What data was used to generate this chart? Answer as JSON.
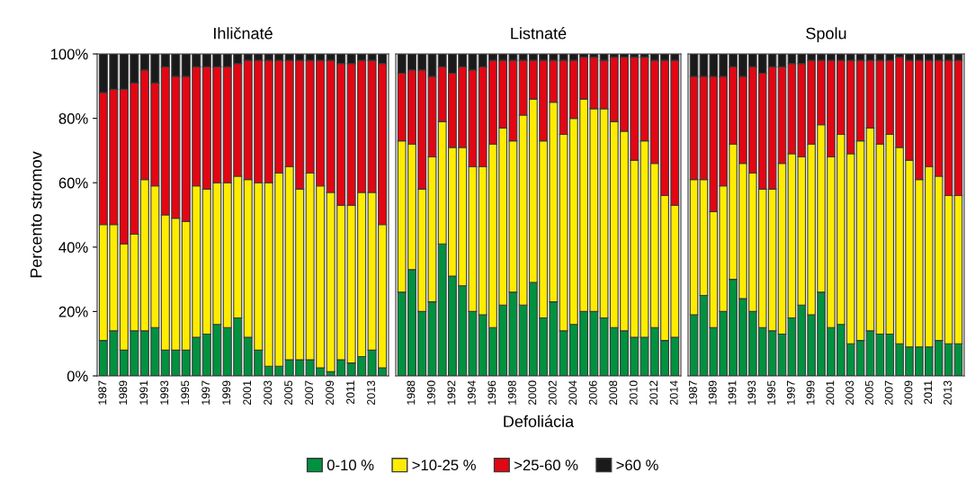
{
  "chart_data": [
    {
      "type": "bar",
      "stacked": true,
      "title": "Ihličnaté",
      "ylabel": "Percento stromov",
      "legend": "bottom",
      "tick_labels": "xy",
      "categories": [
        "1987",
        null,
        "1989",
        null,
        "1991",
        null,
        "1993",
        null,
        "1995",
        null,
        "1997",
        null,
        "1999",
        null,
        "2001",
        null,
        "2003",
        null,
        "2005",
        null,
        "2007",
        null,
        "2009",
        null,
        "2011",
        null,
        "2013",
        null
      ],
      "ylim": [
        0,
        100
      ],
      "yticks": [
        {
          "value": 0,
          "label": "0%"
        },
        {
          "value": 20,
          "label": "20%"
        },
        {
          "value": 40,
          "label": "40%"
        },
        {
          "value": 60,
          "label": "60%"
        },
        {
          "value": 80,
          "label": "80%"
        },
        {
          "value": 100,
          "label": "100%"
        }
      ],
      "series": [
        {
          "name": "0-10 %",
          "color": "#00923f",
          "values": [
            11,
            14,
            8,
            14,
            14,
            15,
            8,
            8,
            8,
            12,
            13,
            16,
            15,
            18,
            12,
            8,
            3,
            3,
            5,
            5,
            5,
            2.5,
            1.3,
            5,
            4,
            6,
            8,
            2.5
          ]
        },
        {
          "name": ">10-25 %",
          "color": "#ffec00",
          "values": [
            36,
            33,
            33,
            30,
            47,
            44,
            42,
            41,
            40,
            47,
            45,
            44,
            45,
            44,
            49,
            52,
            57,
            60,
            60,
            53,
            58,
            56.5,
            55.7,
            48,
            49,
            51,
            49,
            44.5
          ]
        },
        {
          "name": ">25-60 %",
          "color": "#e30613",
          "values": [
            41,
            42,
            48,
            47,
            34,
            32,
            46,
            44,
            45,
            37,
            38,
            36,
            36,
            35,
            37,
            38,
            38,
            35,
            33,
            40,
            35,
            39,
            41,
            44,
            44,
            41,
            41,
            50
          ]
        },
        {
          "name": ">60 %",
          "color": "#1a1a1a",
          "values": [
            12,
            11,
            11,
            9,
            5,
            9,
            4,
            7,
            7,
            4,
            4,
            4,
            4,
            3,
            2,
            2,
            2,
            2,
            2,
            2,
            2,
            2,
            2,
            3,
            3,
            2,
            2,
            3
          ]
        }
      ]
    },
    {
      "type": "bar",
      "stacked": true,
      "title": "Listnaté",
      "xlabel": "Defoliácia",
      "tick_labels": "x",
      "categories": [
        null,
        "1988",
        null,
        "1990",
        null,
        "1992",
        null,
        "1994",
        null,
        "1996",
        null,
        "1998",
        null,
        "2000",
        null,
        "2002",
        null,
        "2004",
        null,
        "2006",
        null,
        "2008",
        null,
        "2010",
        null,
        "2012",
        null,
        "2014"
      ],
      "ylim": [
        0,
        100
      ],
      "series": [
        {
          "color": "#00923f",
          "values": [
            26,
            33,
            20,
            23,
            41,
            31,
            28,
            20,
            19,
            15,
            22,
            26,
            22,
            29,
            18,
            23,
            14,
            16,
            20,
            20,
            18,
            15,
            14,
            12,
            12,
            15,
            11,
            12
          ]
        },
        {
          "color": "#ffec00",
          "values": [
            47,
            39,
            38,
            45,
            38,
            40,
            43,
            45,
            46,
            57,
            55,
            47,
            59,
            57,
            55,
            62,
            61,
            64,
            66,
            63,
            65,
            64,
            62,
            55,
            61,
            51,
            45,
            41
          ]
        },
        {
          "color": "#e30613",
          "values": [
            21,
            23,
            37,
            25,
            17,
            23,
            25,
            30,
            31,
            26,
            21,
            25,
            17,
            12,
            25,
            13,
            23,
            18,
            13,
            16,
            15,
            20,
            23,
            32,
            26,
            32,
            42,
            45
          ]
        },
        {
          "color": "#1a1a1a",
          "values": [
            6,
            5,
            5,
            7,
            4,
            6,
            4,
            5,
            4,
            2,
            2,
            2,
            2,
            2,
            2,
            2,
            2,
            2,
            1,
            1,
            2,
            1,
            1,
            1,
            1,
            2,
            2,
            2
          ]
        }
      ]
    },
    {
      "type": "bar",
      "stacked": true,
      "title": "Spolu",
      "tick_labels": "x",
      "categories": [
        "1987",
        null,
        "1989",
        null,
        "1991",
        null,
        "1993",
        null,
        "1995",
        null,
        "1997",
        null,
        "1999",
        null,
        "2001",
        null,
        "2003",
        null,
        "2005",
        null,
        "2007",
        null,
        "2009",
        null,
        "2011",
        null,
        "2013",
        null
      ],
      "ylim": [
        0,
        100
      ],
      "series": [
        {
          "color": "#00923f",
          "values": [
            19,
            25,
            15,
            20,
            30,
            24,
            20,
            15,
            14,
            13,
            18,
            22,
            19,
            26,
            15,
            16,
            10,
            11,
            14,
            13,
            13,
            10,
            9,
            9,
            9,
            11,
            10,
            10
          ]
        },
        {
          "color": "#ffec00",
          "values": [
            42,
            36,
            36,
            39,
            42,
            42,
            43,
            43,
            44,
            53,
            51,
            46,
            53,
            52,
            53,
            59,
            59,
            62,
            63,
            59,
            62,
            61,
            58,
            52,
            56,
            51,
            46,
            46
          ]
        },
        {
          "color": "#e30613",
          "values": [
            32,
            32,
            42,
            34,
            24,
            27,
            33,
            36,
            38,
            30,
            28,
            29,
            26,
            20,
            30,
            23,
            29,
            25,
            21,
            26,
            23,
            28,
            31,
            37,
            33,
            36,
            42,
            42
          ]
        },
        {
          "color": "#1a1a1a",
          "values": [
            7,
            7,
            7,
            7,
            4,
            7,
            4,
            6,
            4,
            4,
            3,
            3,
            2,
            2,
            2,
            2,
            2,
            2,
            2,
            2,
            2,
            1,
            2,
            2,
            2,
            2,
            2,
            2
          ]
        }
      ]
    }
  ]
}
